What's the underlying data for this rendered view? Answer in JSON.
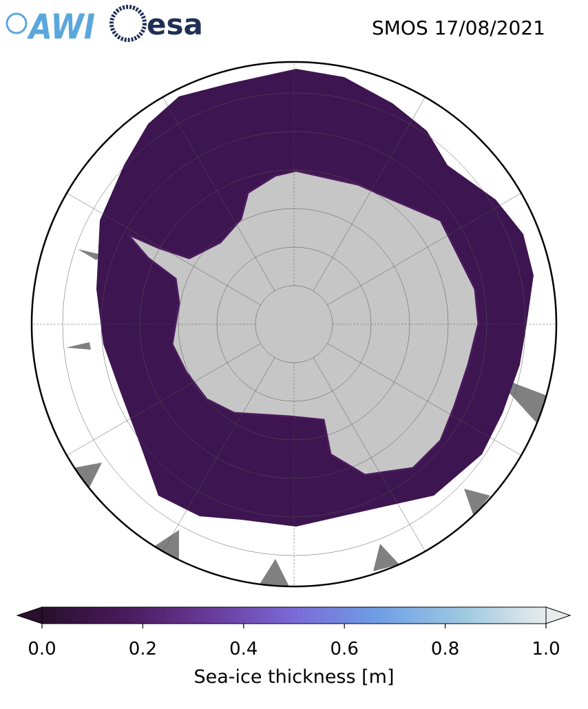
{
  "header": {
    "logos": [
      "AWI",
      "esa"
    ],
    "title": "SMOS 17/08/2021"
  },
  "colorbar": {
    "label": "Sea-ice thickness [m]",
    "lim": [
      0,
      1
    ],
    "ticks": [
      {
        "value": 0,
        "label": "0.0"
      },
      0.2,
      0.4,
      0.6,
      0.8,
      {
        "value": 1,
        "label": "1.0"
      }
    ],
    "colormap": [
      "#2a0f2e",
      "#4a1a5c",
      "#6a3a9a",
      "#7a6ad6",
      "#6f9ee6",
      "#9cc8e0",
      "#e8ecec"
    ]
  }
}
